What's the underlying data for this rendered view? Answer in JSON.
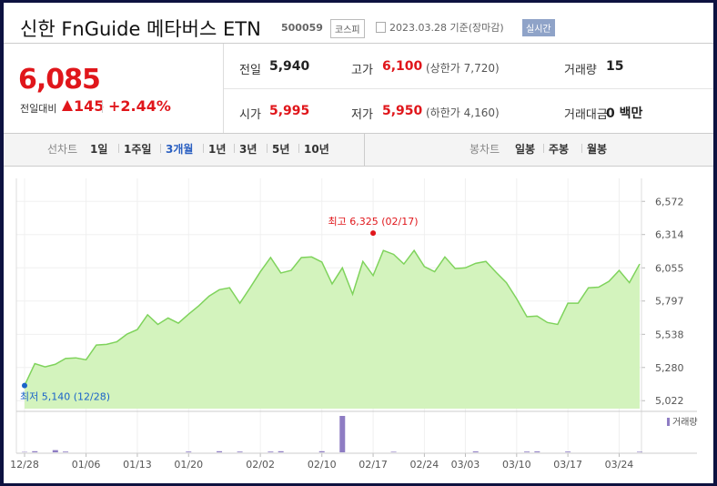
{
  "header": {
    "title": "신한 FnGuide 메타버스 ETN",
    "code": "500059",
    "market": "코스피",
    "date": "2023.03.28 기준(장마감)",
    "realtime": "실시간"
  },
  "price": {
    "current": "6,085",
    "change_label": "전일대비",
    "change": "145",
    "change_rate": "+2.44%"
  },
  "stats": [
    [
      {
        "label": "전일",
        "value": "5,940",
        "color": "#222"
      },
      {
        "label": "고가",
        "value": "6,100",
        "note": "(상한가 7,720)",
        "color": "#e0161b"
      },
      {
        "label": "거래량",
        "value": "15",
        "color": "#222"
      }
    ],
    [
      {
        "label": "시가",
        "value": "5,995",
        "color": "#e0161b"
      },
      {
        "label": "저가",
        "value": "5,950",
        "note": "(하한가 4,160)",
        "color": "#e0161b"
      },
      {
        "label": "거래대금",
        "value": "0 백만",
        "color": "#222"
      }
    ]
  ],
  "tabs": {
    "line_label": "선차트",
    "periods": [
      {
        "label": "1일"
      },
      {
        "label": "1주일"
      },
      {
        "label": "3개월",
        "selected": true
      },
      {
        "label": "1년"
      },
      {
        "label": "3년"
      },
      {
        "label": "5년"
      },
      {
        "label": "10년"
      }
    ],
    "candle_label": "봉차트",
    "candles": [
      {
        "label": "일봉"
      },
      {
        "label": "주봉"
      },
      {
        "label": "월봉"
      }
    ]
  },
  "chart_data": [
    {
      "type": "area",
      "color": "#7fd35c",
      "fill": "#d3f3bd",
      "categories": [
        "12/28",
        null,
        null,
        null,
        null,
        null,
        "01/06",
        null,
        null,
        null,
        null,
        "01/13",
        null,
        null,
        null,
        null,
        "01/20",
        null,
        null,
        null,
        null,
        null,
        null,
        "02/02",
        null,
        null,
        null,
        null,
        null,
        "02/10",
        null,
        null,
        null,
        null,
        "02/17",
        null,
        null,
        null,
        null,
        "02/24",
        null,
        null,
        null,
        "03/03",
        null,
        null,
        null,
        null,
        "03/10",
        null,
        null,
        null,
        null,
        "03/17",
        null,
        null,
        null,
        null,
        "03/24",
        null,
        null
      ],
      "values": [
        5140,
        5310,
        5285,
        5305,
        5350,
        5355,
        5340,
        5455,
        5460,
        5480,
        5540,
        5575,
        5690,
        5615,
        5665,
        5625,
        5695,
        5760,
        5835,
        5885,
        5900,
        5780,
        5900,
        6025,
        6135,
        6015,
        6035,
        6135,
        6140,
        6100,
        5930,
        6055,
        5850,
        6105,
        5995,
        6190,
        6160,
        6085,
        6190,
        6065,
        6025,
        6140,
        6050,
        6055,
        6090,
        6105,
        6020,
        5940,
        5815,
        5675,
        5680,
        5630,
        5615,
        5780,
        5780,
        5900,
        5905,
        5950,
        6035,
        5940,
        6085
      ],
      "ylim": [
        4960,
        6680
      ],
      "yticks": [
        {
          "value": 5022,
          "label": "5,022"
        },
        {
          "value": 5280,
          "label": "5,280"
        },
        {
          "value": 5538,
          "label": "5,538"
        },
        {
          "value": 5797,
          "label": "5,797"
        },
        {
          "value": 6055,
          "label": "6,055"
        },
        {
          "value": 6314,
          "label": "6,314"
        },
        {
          "value": 6572,
          "label": "6,572"
        }
      ],
      "grid": true,
      "annotations": [
        {
          "text": "최고 6,325 (02/17)",
          "value": 6325,
          "category": "02/17",
          "color": "#e0161b"
        },
        {
          "text": "최저 5,140 (12/28)",
          "value": 5140,
          "category": "12/28",
          "color": "#1a63c9"
        }
      ]
    },
    {
      "type": "bar",
      "name": "거래량",
      "color": "#8e7cc3",
      "values": [
        10,
        30,
        0,
        60,
        20,
        0,
        0,
        0,
        0,
        0,
        0,
        0,
        0,
        0,
        0,
        0,
        20,
        0,
        0,
        30,
        0,
        20,
        0,
        0,
        20,
        30,
        0,
        0,
        0,
        30,
        0,
        1000,
        0,
        0,
        0,
        0,
        15,
        0,
        0,
        0,
        0,
        0,
        0,
        0,
        25,
        0,
        0,
        0,
        0,
        20,
        25,
        0,
        0,
        20,
        0,
        0,
        0,
        0,
        0,
        0,
        15
      ]
    }
  ]
}
